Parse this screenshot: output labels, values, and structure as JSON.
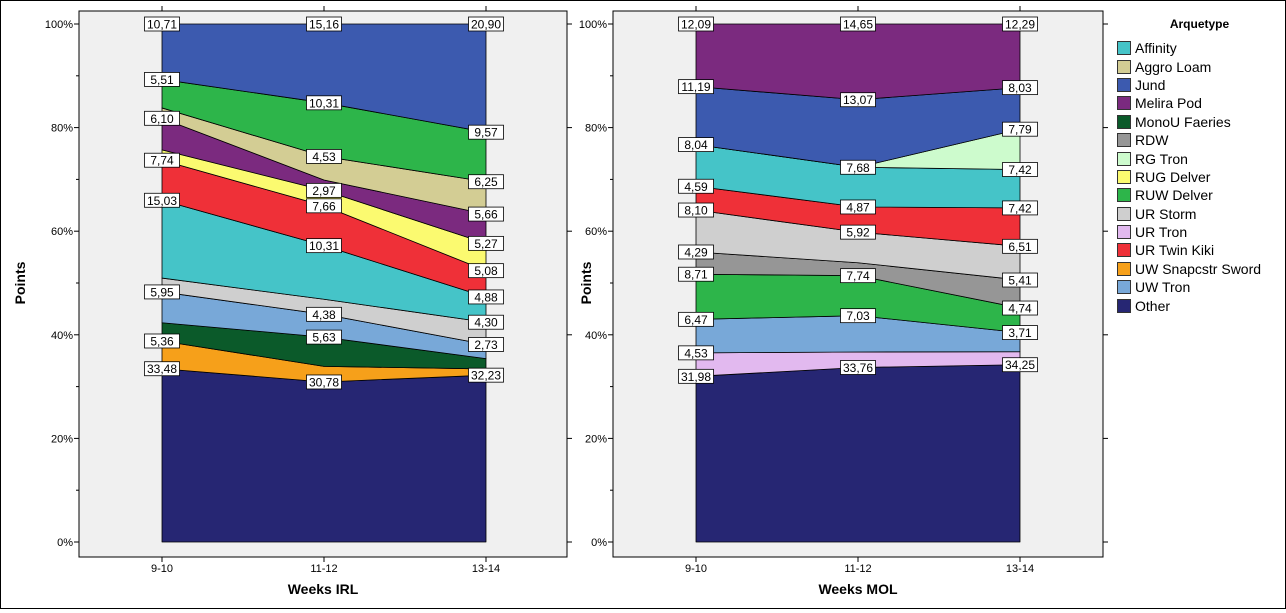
{
  "legend": {
    "title": "Arquetype",
    "items": [
      {
        "name": "Affinity",
        "color": "#45c4c8"
      },
      {
        "name": "Aggro Loam",
        "color": "#d3cd94"
      },
      {
        "name": "Jund",
        "color": "#3c5aaf"
      },
      {
        "name": "Melira Pod",
        "color": "#7b2a7f"
      },
      {
        "name": "MonoU Faeries",
        "color": "#0b5a2a"
      },
      {
        "name": "RDW",
        "color": "#969696"
      },
      {
        "name": "RG Tron",
        "color": "#cdfbcd"
      },
      {
        "name": "RUG Delver",
        "color": "#fbfa70"
      },
      {
        "name": "RUW Delver",
        "color": "#2db54a"
      },
      {
        "name": "UR Storm",
        "color": "#cfcfcf"
      },
      {
        "name": "UR Tron",
        "color": "#e2b9ef"
      },
      {
        "name": "UR Twin Kiki",
        "color": "#ef3038"
      },
      {
        "name": "UW Snapcstr Sword",
        "color": "#f6a01a"
      },
      {
        "name": "UW Tron",
        "color": "#78a8d8"
      },
      {
        "name": "Other",
        "color": "#262673"
      }
    ]
  },
  "chart_data": [
    {
      "type": "area",
      "stacked": "percent",
      "xlabel": "Weeks IRL",
      "ylabel": "Points",
      "categories": [
        "9-10",
        "11-12",
        "13-14"
      ],
      "yticks": [
        "0%",
        "20%",
        "40%",
        "60%",
        "80%",
        "100%"
      ],
      "ylim": [
        0,
        100
      ],
      "series": [
        {
          "name": "Other",
          "values": [
            33.48,
            30.78,
            32.23
          ],
          "labels": [
            "33,48",
            "30,78",
            "32,23"
          ]
        },
        {
          "name": "UW Snapcstr Sword",
          "values": [
            5.36,
            3.0,
            1.2
          ],
          "labels": [
            "5,36",
            "",
            ""
          ]
        },
        {
          "name": "MonoU Faeries",
          "values": [
            3.53,
            5.63,
            2.0
          ],
          "labels": [
            "",
            "5,63",
            ""
          ]
        },
        {
          "name": "UW Tron",
          "values": [
            5.95,
            4.38,
            2.73
          ],
          "labels": [
            "5,95",
            "4,38",
            "2,73"
          ]
        },
        {
          "name": "UR Storm",
          "values": [
            2.68,
            2.9,
            4.3
          ],
          "labels": [
            "",
            "",
            "4,30"
          ]
        },
        {
          "name": "Affinity",
          "values": [
            15.03,
            10.31,
            4.88
          ],
          "labels": [
            "15,03",
            "10,31",
            "4,88"
          ]
        },
        {
          "name": "UR Twin Kiki",
          "values": [
            7.74,
            7.66,
            5.08
          ],
          "labels": [
            "7,74",
            "7,66",
            "5,08"
          ]
        },
        {
          "name": "RUG Delver",
          "values": [
            2.0,
            2.97,
            5.27
          ],
          "labels": [
            "",
            "2,97",
            "5,27"
          ]
        },
        {
          "name": "Melira Pod",
          "values": [
            6.1,
            2.0,
            5.66
          ],
          "labels": [
            "6,10",
            "",
            "5,66"
          ]
        },
        {
          "name": "Aggro Loam",
          "values": [
            2.0,
            4.53,
            6.25
          ],
          "labels": [
            "",
            "4,53",
            "6,25"
          ]
        },
        {
          "name": "RUW Delver",
          "values": [
            5.51,
            10.31,
            9.57
          ],
          "labels": [
            "5,51",
            "10,31",
            "9,57"
          ]
        },
        {
          "name": "Jund",
          "values": [
            10.71,
            15.16,
            20.9
          ],
          "labels": [
            "10,71",
            "15,16",
            "20,90"
          ]
        }
      ]
    },
    {
      "type": "area",
      "stacked": "percent",
      "xlabel": "Weeks MOL",
      "ylabel": "Points",
      "categories": [
        "9-10",
        "11-12",
        "13-14"
      ],
      "yticks": [
        "0%",
        "20%",
        "40%",
        "60%",
        "80%",
        "100%"
      ],
      "ylim": [
        0,
        100
      ],
      "series": [
        {
          "name": "Other",
          "values": [
            31.98,
            33.76,
            34.25
          ],
          "labels": [
            "31,98",
            "33,76",
            "34,25"
          ]
        },
        {
          "name": "UR Tron",
          "values": [
            4.53,
            3.0,
            2.5
          ],
          "labels": [
            "4,53",
            "",
            ""
          ]
        },
        {
          "name": "UW Tron",
          "values": [
            6.47,
            7.03,
            3.71
          ],
          "labels": [
            "6,47",
            "7,03",
            "3,71"
          ]
        },
        {
          "name": "RUW Delver",
          "values": [
            8.71,
            7.74,
            4.74
          ],
          "labels": [
            "8,71",
            "7,74",
            "4,74"
          ]
        },
        {
          "name": "RDW",
          "values": [
            4.29,
            2.5,
            5.41
          ],
          "labels": [
            "4,29",
            "",
            "5,41"
          ]
        },
        {
          "name": "UR Storm",
          "values": [
            8.1,
            5.92,
            6.51
          ],
          "labels": [
            "8,10",
            "5,92",
            "6,51"
          ]
        },
        {
          "name": "UR Twin Kiki",
          "values": [
            4.59,
            4.87,
            7.42
          ],
          "labels": [
            "4,59",
            "4,87",
            "7,42"
          ]
        },
        {
          "name": "Affinity",
          "values": [
            8.04,
            7.68,
            7.42
          ],
          "labels": [
            "8,04",
            "7,68",
            "7,42"
          ]
        },
        {
          "name": "RG Tron",
          "values": [
            0.0,
            0.0,
            7.79
          ],
          "labels": [
            "",
            "",
            "7,79"
          ]
        },
        {
          "name": "Jund",
          "values": [
            11.19,
            13.07,
            8.03
          ],
          "labels": [
            "11,19",
            "13,07",
            "8,03"
          ]
        },
        {
          "name": "Melira Pod",
          "values": [
            12.09,
            14.65,
            12.29
          ],
          "labels": [
            "12,09",
            "14,65",
            "12,29"
          ]
        }
      ]
    }
  ]
}
